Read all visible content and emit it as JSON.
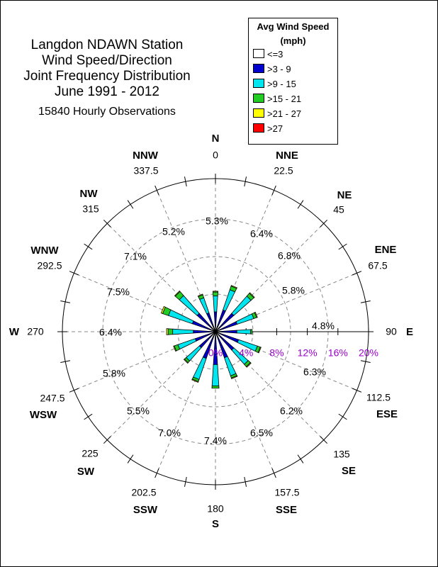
{
  "title_lines": [
    "Langdon NDAWN Station",
    "Wind Speed/Direction",
    "Joint Frequency Distribution",
    "June 1991 - 2012"
  ],
  "subtitle": "15840 Hourly Observations",
  "legend": {
    "title_lines": [
      "Avg Wind Speed",
      "(mph)"
    ],
    "items": [
      {
        "label": "<=3",
        "color": "#ffffff"
      },
      {
        "label": ">3 - 9",
        "color": "#0000cc"
      },
      {
        "label": ">9 - 15",
        "color": "#00e5ee"
      },
      {
        "label": ">15 - 21",
        "color": "#22cc22"
      },
      {
        "label": ">21 - 27",
        "color": "#ffff00"
      },
      {
        "label": ">27",
        "color": "#ff0000"
      }
    ]
  },
  "chart_data": {
    "type": "wind-rose",
    "directions": [
      "N",
      "NNE",
      "NE",
      "ENE",
      "E",
      "ESE",
      "SE",
      "SSE",
      "S",
      "SSW",
      "SW",
      "WSW",
      "W",
      "WNW",
      "NW",
      "NNW"
    ],
    "degrees": [
      "0",
      "22.5",
      "45",
      "67.5",
      "90",
      "112.5",
      "135",
      "157.5",
      "180",
      "202.5",
      "225",
      "247.5",
      "270",
      "292.5",
      "315",
      "337.5"
    ],
    "sector_totals": [
      "5.3%",
      "6.4%",
      "6.8%",
      "5.8%",
      "4.8%",
      "6.3%",
      "6.2%",
      "6.5%",
      "7.4%",
      "7.0%",
      "5.5%",
      "5.8%",
      "6.4%",
      "7.5%",
      "7.1%",
      "5.2%"
    ],
    "radial_ticks": [
      "0%",
      "4%",
      "8%",
      "12%",
      "16%",
      "20%"
    ],
    "radial_max": 20,
    "speed_bins": [
      "<=3",
      ">3 - 9",
      ">9 - 15",
      ">15 - 21",
      ">21 - 27",
      ">27"
    ],
    "percent_by_bin": [
      [
        0.2,
        2.4,
        2.1,
        0.5,
        0.1,
        0.0
      ],
      [
        0.2,
        2.8,
        2.8,
        0.5,
        0.1,
        0.0
      ],
      [
        0.2,
        3.0,
        3.0,
        0.5,
        0.1,
        0.0
      ],
      [
        0.2,
        2.8,
        2.3,
        0.4,
        0.1,
        0.0
      ],
      [
        0.2,
        2.6,
        1.8,
        0.2,
        0.0,
        0.0
      ],
      [
        0.2,
        3.0,
        2.6,
        0.4,
        0.1,
        0.0
      ],
      [
        0.2,
        3.0,
        2.5,
        0.4,
        0.1,
        0.0
      ],
      [
        0.2,
        3.4,
        2.5,
        0.3,
        0.1,
        0.0
      ],
      [
        0.2,
        4.1,
        2.8,
        0.3,
        0.0,
        0.0
      ],
      [
        0.2,
        3.5,
        2.9,
        0.3,
        0.1,
        0.0
      ],
      [
        0.2,
        2.6,
        2.3,
        0.3,
        0.1,
        0.0
      ],
      [
        0.2,
        2.6,
        2.4,
        0.5,
        0.1,
        0.0
      ],
      [
        0.2,
        2.7,
        2.7,
        0.6,
        0.2,
        0.0
      ],
      [
        0.2,
        3.0,
        3.3,
        0.8,
        0.2,
        0.0
      ],
      [
        0.2,
        3.0,
        3.1,
        0.7,
        0.1,
        0.0
      ],
      [
        0.2,
        2.4,
        2.1,
        0.4,
        0.1,
        0.0
      ]
    ],
    "ring_color": "#888888",
    "tick_label_color": "#9900cc"
  }
}
